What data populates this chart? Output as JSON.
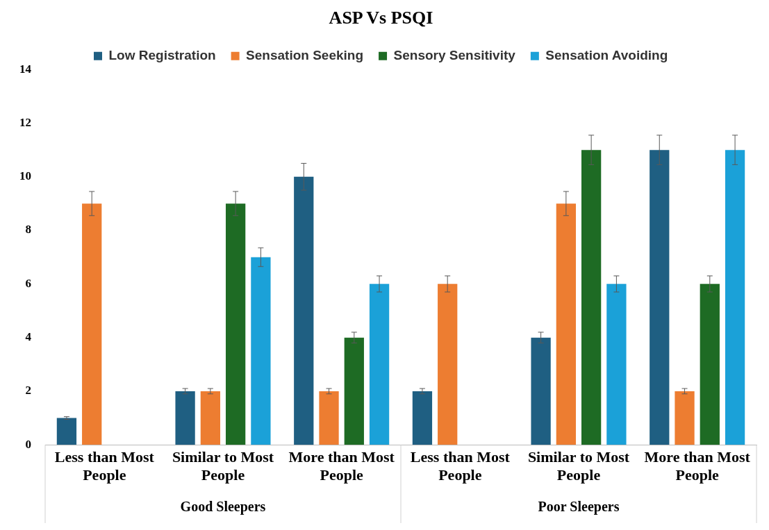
{
  "chart_data": {
    "type": "bar",
    "title": "ASP Vs PSQI",
    "categories": [
      "Less than Most People",
      "Similar to Most People",
      "More than Most People",
      "Less than Most People",
      "Similar to Most People",
      "More than Most People"
    ],
    "series": [
      {
        "name": "Low Registration",
        "color": "#1f5f82",
        "values": [
          1,
          2,
          10,
          2,
          4,
          11
        ],
        "errors": [
          0.05,
          0.1,
          0.5,
          0.1,
          0.2,
          0.55
        ]
      },
      {
        "name": "Sensation Seeking",
        "color": "#ed7d31",
        "values": [
          9,
          2,
          2,
          6,
          9,
          2
        ],
        "errors": [
          0.45,
          0.1,
          0.1,
          0.3,
          0.45,
          0.1
        ]
      },
      {
        "name": "Sensory Sensitivity",
        "color": "#1e6b24",
        "values": [
          null,
          9,
          4,
          null,
          11,
          6
        ],
        "errors": [
          null,
          0.45,
          0.2,
          null,
          0.55,
          0.3
        ]
      },
      {
        "name": "Sensation Avoiding",
        "color": "#1ba1d8",
        "values": [
          null,
          7,
          6,
          null,
          6,
          11
        ],
        "errors": [
          null,
          0.35,
          0.3,
          null,
          0.3,
          0.55
        ]
      }
    ],
    "ylim": [
      0,
      14
    ],
    "yticks": [
      0,
      2,
      4,
      6,
      8,
      10,
      12,
      14
    ],
    "grid": false,
    "legend": "top",
    "annotations": [
      "Good Sleepers",
      "Poor Sleepers"
    ]
  }
}
